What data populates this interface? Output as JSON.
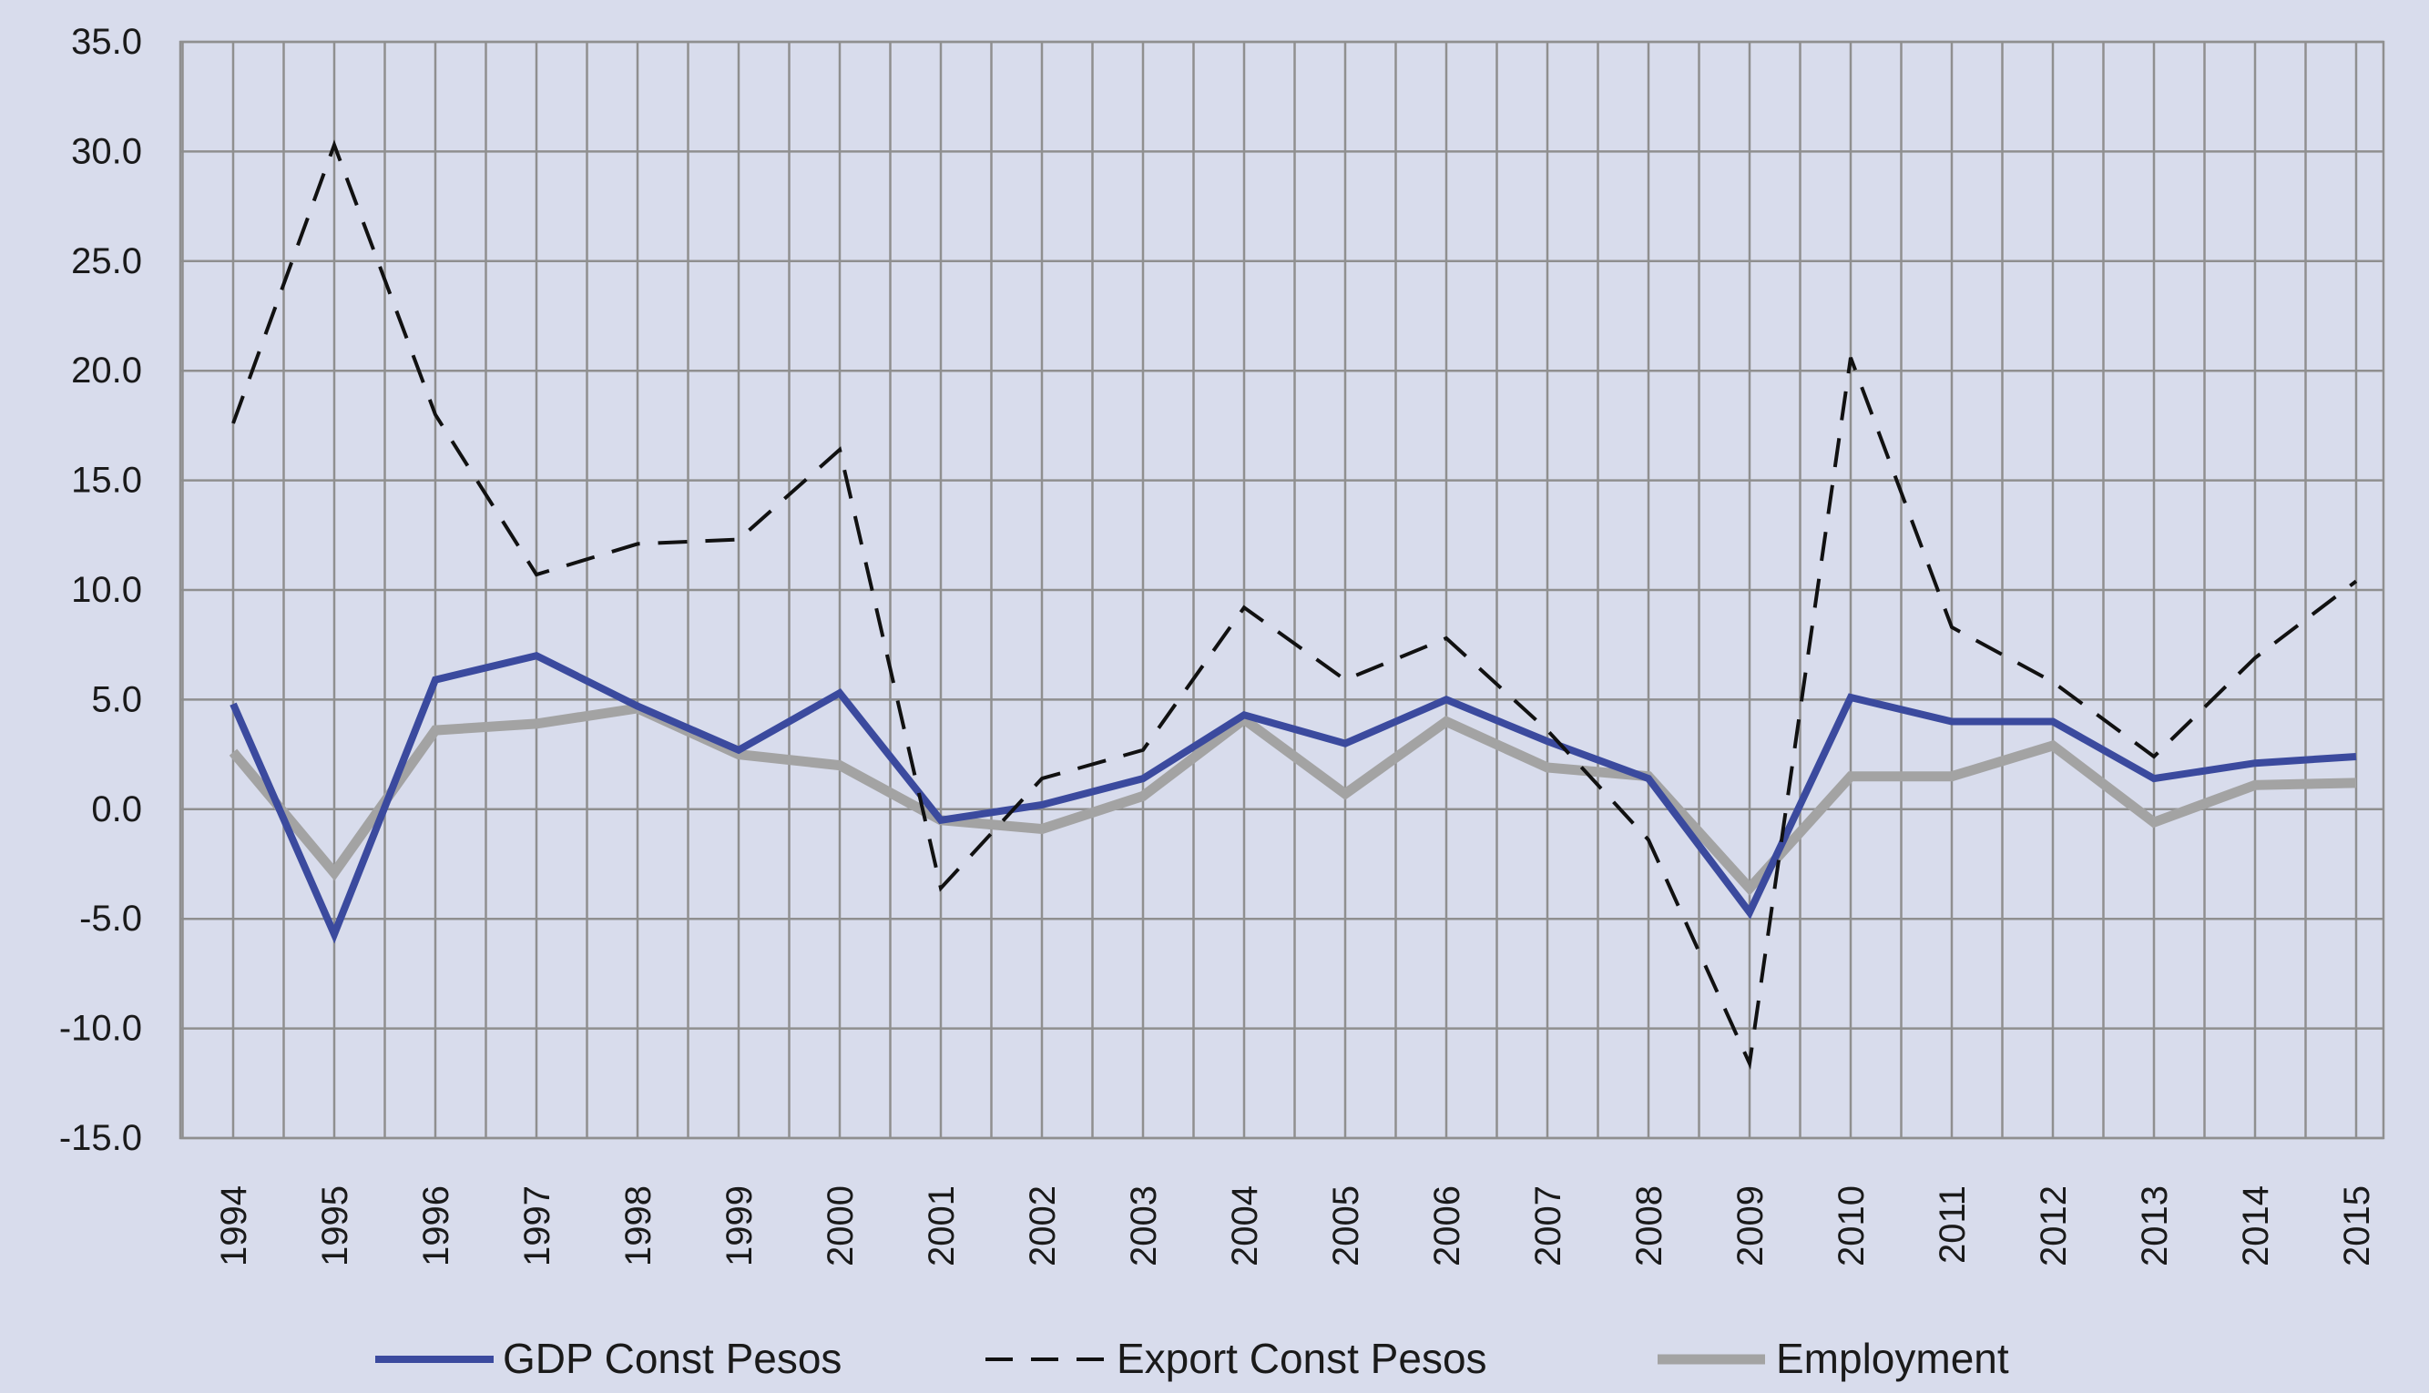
{
  "chart_data": {
    "type": "line",
    "title": "",
    "xlabel": "",
    "ylabel": "",
    "categories": [
      "1994",
      "1995",
      "1996",
      "1997",
      "1998",
      "1999",
      "2000",
      "2001",
      "2002",
      "2003",
      "2004",
      "2005",
      "2006",
      "2007",
      "2008",
      "2009",
      "2010",
      "2011",
      "2012",
      "2013",
      "2014",
      "2015"
    ],
    "ylim": [
      -15,
      35
    ],
    "yticks": [
      "35.0",
      "30.0",
      "25.0",
      "20.0",
      "15.0",
      "10.0",
      "5.0",
      "0.0",
      "-5.0",
      "-10.0",
      "-15.0"
    ],
    "grid": true,
    "legend_position": "bottom",
    "colors": {
      "background": "#d8dcec",
      "grid": "#8f8f8f",
      "gdp": "#3b4a9e",
      "export": "#111111",
      "employment": "#a3a3a3"
    },
    "series": [
      {
        "name": "GDP Const Pesos",
        "style": "solid",
        "values": [
          4.8,
          -5.7,
          5.9,
          7.0,
          4.7,
          2.7,
          5.3,
          -0.5,
          0.2,
          1.4,
          4.3,
          3.0,
          5.0,
          3.1,
          1.4,
          -4.7,
          5.1,
          4.0,
          4.0,
          1.4,
          2.1,
          2.4
        ]
      },
      {
        "name": "Export Const Pesos",
        "style": "dashed",
        "values": [
          17.6,
          30.3,
          18.0,
          10.7,
          12.1,
          12.3,
          16.4,
          -3.6,
          1.4,
          2.7,
          9.2,
          5.9,
          7.8,
          3.6,
          -1.4,
          -11.6,
          20.6,
          8.3,
          5.8,
          2.4,
          6.9,
          10.4
        ]
      },
      {
        "name": "Employment",
        "style": "solid-thick",
        "values": [
          2.6,
          -2.9,
          3.6,
          3.9,
          4.6,
          2.5,
          2.0,
          -0.5,
          -0.9,
          0.6,
          4.1,
          0.7,
          4.0,
          1.9,
          1.5,
          -3.6,
          1.5,
          1.5,
          2.9,
          -0.6,
          1.1,
          1.2
        ]
      }
    ]
  }
}
